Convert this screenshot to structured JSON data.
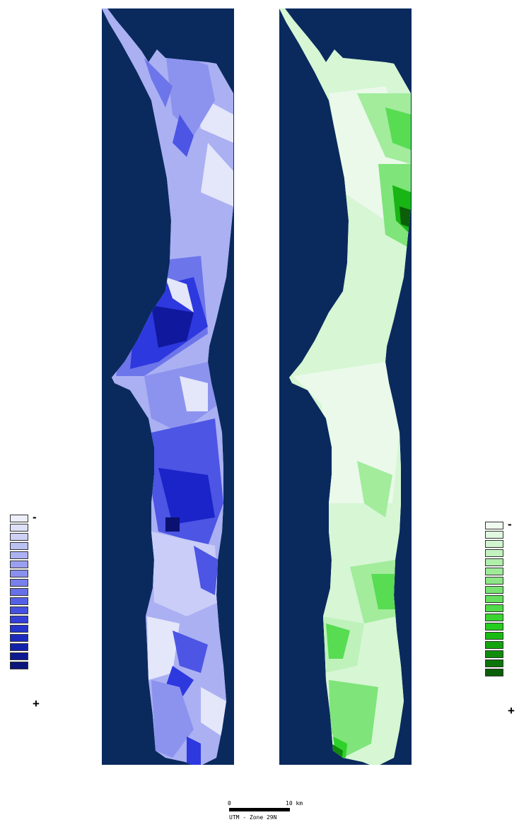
{
  "maps": [
    {
      "id": "blue",
      "background": "#0a2a5e",
      "palette": [
        "#e4e6fa",
        "#c9cdf7",
        "#aab0f2",
        "#8c93ee",
        "#6d75ea",
        "#4c55e4",
        "#2d38df",
        "#1a24c8",
        "#10189e",
        "#0b1170"
      ]
    },
    {
      "id": "green",
      "background": "#0a2a5e",
      "palette": [
        "#eaf9ea",
        "#d6f6d4",
        "#bff2bb",
        "#a2ec9c",
        "#7fe47a",
        "#57dc52",
        "#2fd22a",
        "#18b514",
        "#0f8a0c",
        "#0a5f08"
      ]
    }
  ],
  "legends": [
    {
      "id": "left",
      "minus_label": "-",
      "plus_label": "+",
      "colors": [
        "#eceef9",
        "#dde0f7",
        "#cdd1f5",
        "#bcc1f3",
        "#abb1f1",
        "#9aa0ef",
        "#8990ed",
        "#7880eb",
        "#6670e9",
        "#5560e7",
        "#4450e0",
        "#3440d8",
        "#2635cc",
        "#1c2bbd",
        "#1322aa",
        "#0e1a92",
        "#0b157a"
      ]
    },
    {
      "id": "right",
      "minus_label": "-",
      "plus_label": "+",
      "colors": [
        "#f0fbf0",
        "#e1f8e0",
        "#d2f5d0",
        "#c1f2bf",
        "#b0eeac",
        "#9fea99",
        "#8de686",
        "#7ae273",
        "#66de5e",
        "#50d948",
        "#3ad432",
        "#26cc1e",
        "#19bb12",
        "#13a40e",
        "#0f8c0b",
        "#0b7509",
        "#095f07"
      ]
    }
  ],
  "scale": {
    "start_label": "0",
    "end_label": "10 km",
    "projection_label": "UTM - Zone 29N"
  }
}
